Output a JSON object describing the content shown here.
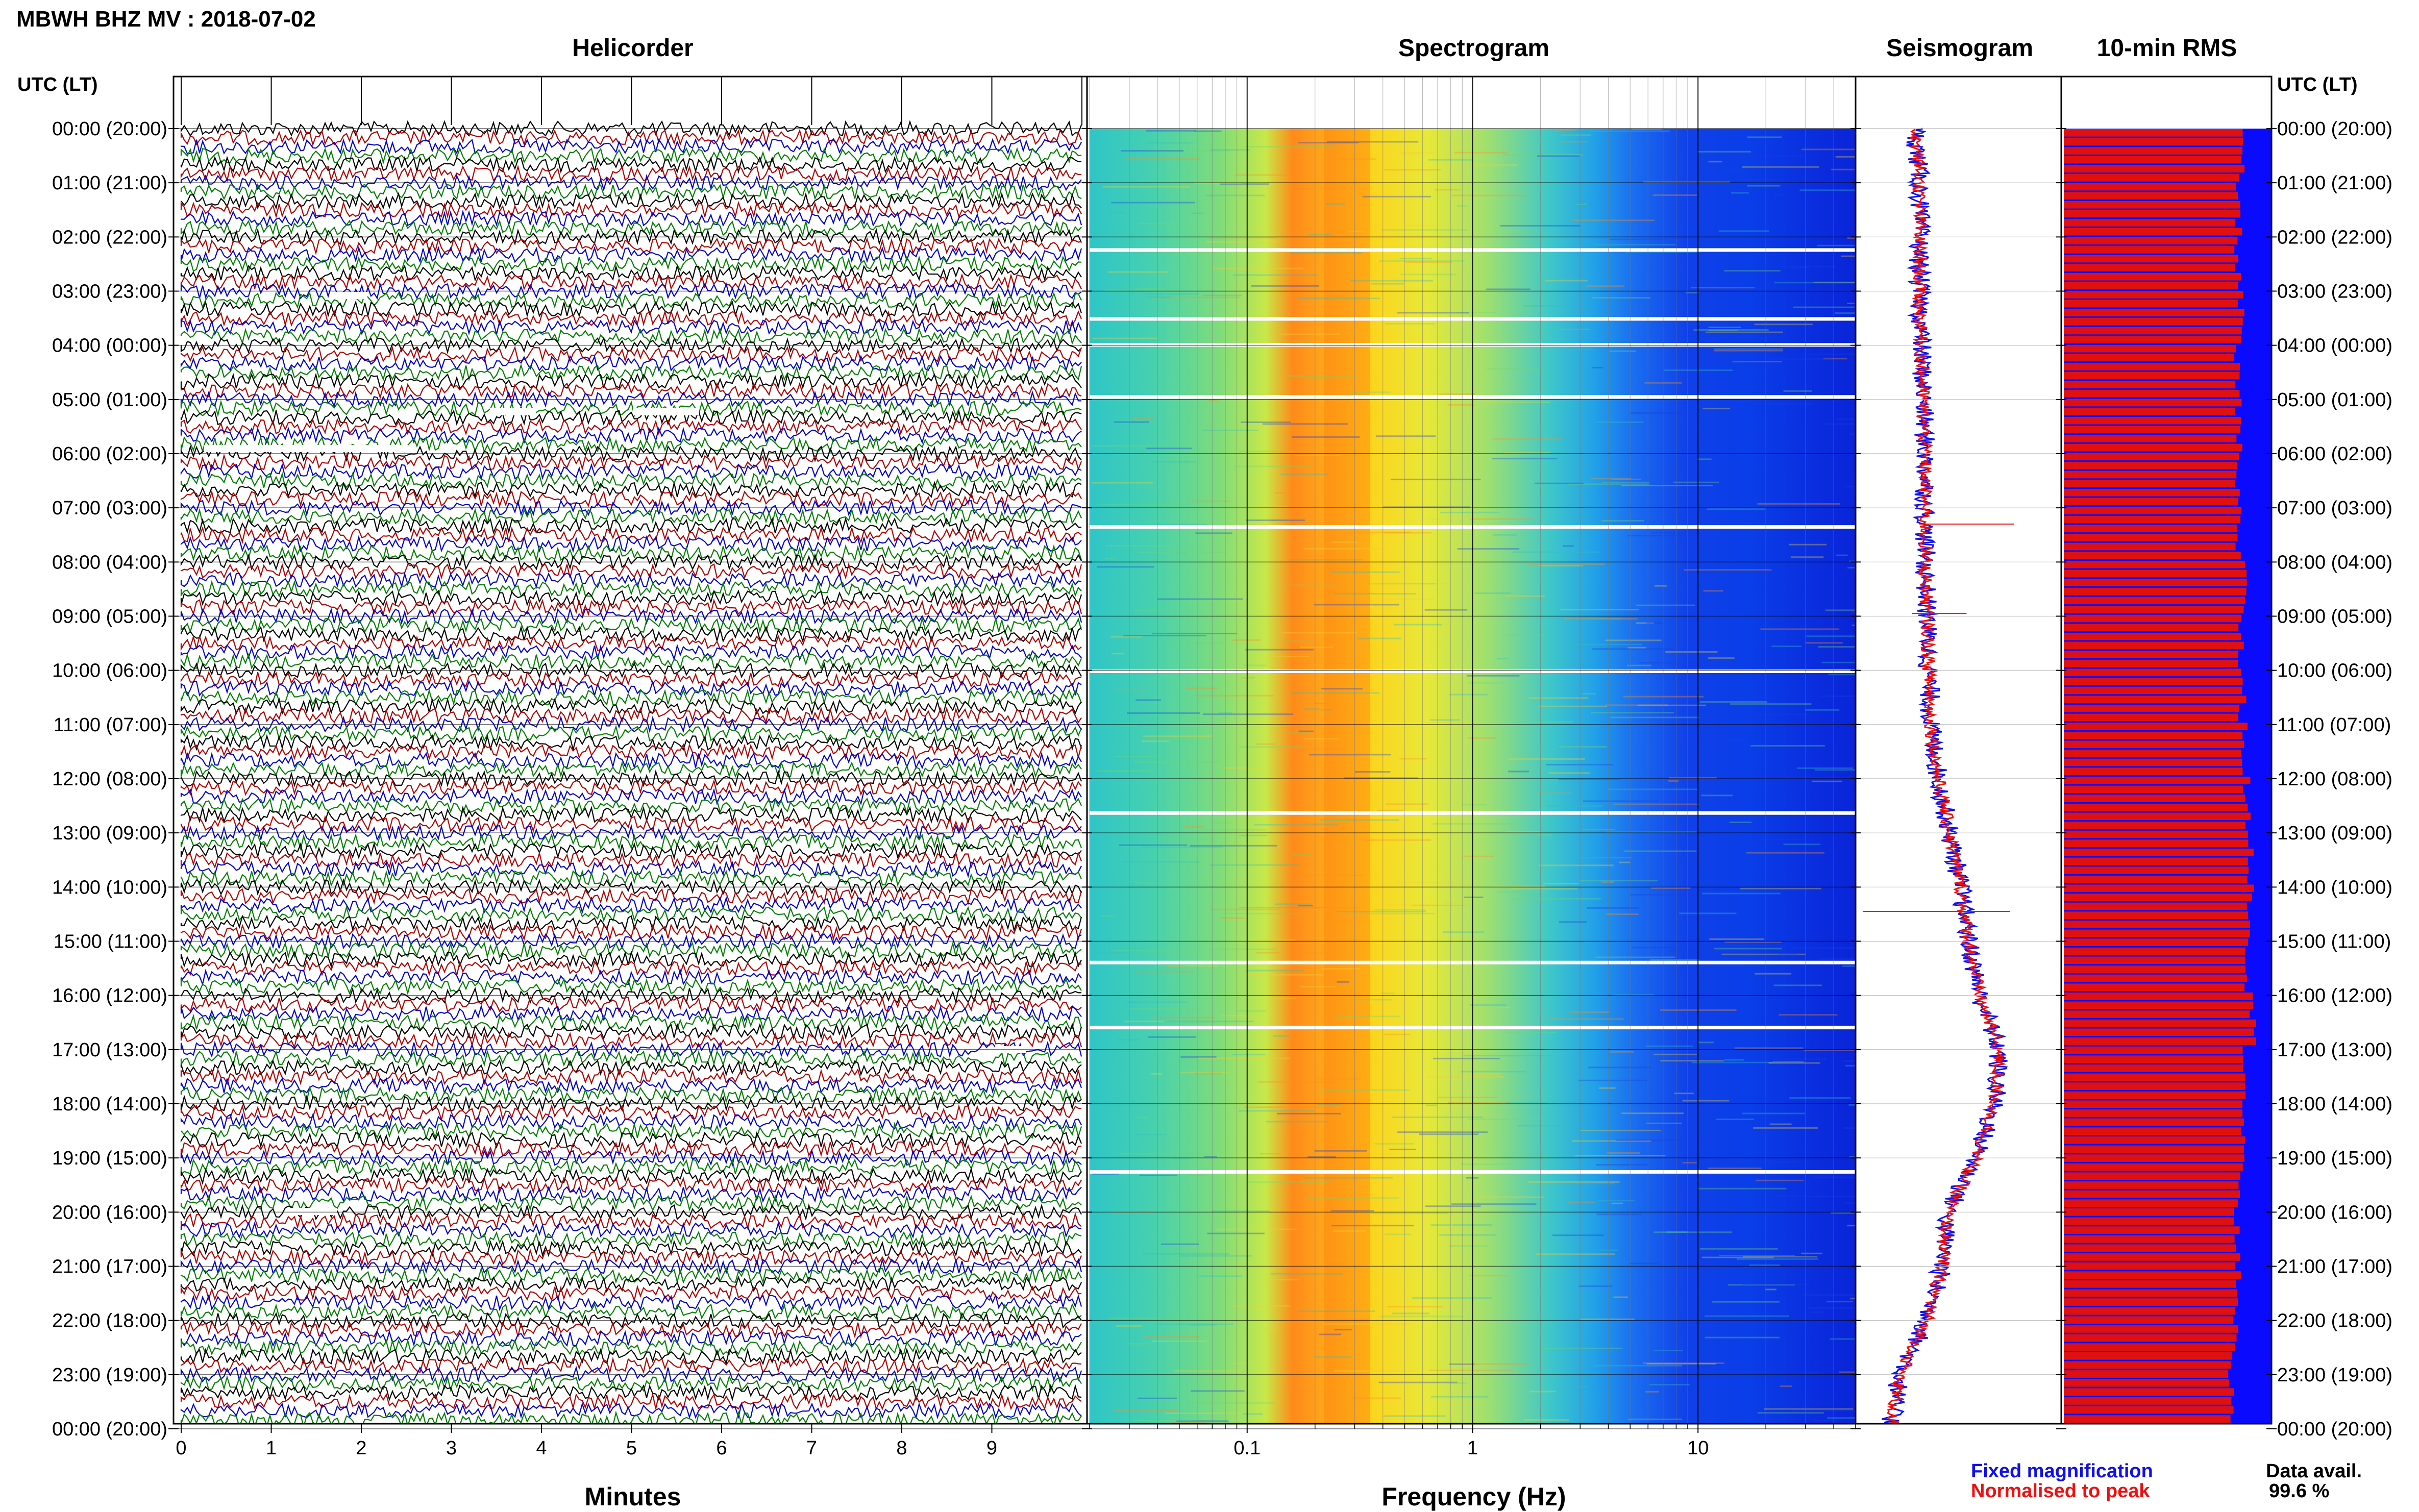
{
  "header": {
    "title": "MBWH BHZ MV : 2018-07-02",
    "time_axis_label": "UTC (LT)"
  },
  "panels": {
    "helicorder": "Helicorder",
    "spectrogram": "Spectrogram",
    "seismogram": "Seismogram",
    "rms": "10-min RMS"
  },
  "axes": {
    "helicorder_xlabel": "Minutes",
    "spectrogram_xlabel": "Frequency (Hz)"
  },
  "legend": {
    "fixed": "Fixed magnification",
    "normalised": "Normalised to peak",
    "fixed_color": "#1010ee",
    "normalised_color": "#ee1010"
  },
  "data_availability": {
    "label": "Data avail.",
    "value": "99.6 %"
  },
  "colors": {
    "trace_cycle": [
      "#000000",
      "#b00000",
      "#0000cc",
      "#008000"
    ],
    "rms_bar": "#e01010",
    "rms_background": "#0a0aff"
  },
  "chart_data": [
    {
      "type": "line",
      "title": "Helicorder",
      "xlabel": "Minutes",
      "x_ticks": [
        "0",
        "1",
        "2",
        "3",
        "4",
        "5",
        "6",
        "7",
        "8",
        "9"
      ],
      "xlim": [
        0,
        10
      ],
      "y_ticks": [
        "00:00 (20:00)",
        "01:00 (21:00)",
        "02:00 (22:00)",
        "03:00 (23:00)",
        "04:00 (00:00)",
        "05:00 (01:00)",
        "06:00 (02:00)",
        "07:00 (03:00)",
        "08:00 (04:00)",
        "09:00 (05:00)",
        "10:00 (06:00)",
        "11:00 (07:00)",
        "12:00 (08:00)",
        "13:00 (09:00)",
        "14:00 (10:00)",
        "15:00 (11:00)",
        "16:00 (12:00)",
        "17:00 (13:00)",
        "18:00 (14:00)",
        "19:00 (15:00)",
        "20:00 (16:00)",
        "21:00 (17:00)",
        "22:00 (18:00)",
        "23:00 (19:00)",
        "00:00 (20:00)"
      ],
      "rows_per_hour": 6,
      "trace_count": 144
    },
    {
      "type": "heatmap",
      "title": "Spectrogram",
      "xlabel": "Frequency (Hz)",
      "x_scale": "log",
      "x_ticks": [
        "0.1",
        "1",
        "10"
      ],
      "xlim": [
        0.02,
        50
      ],
      "peak_band_hz": [
        0.22,
        0.35
      ],
      "colormap": "jet"
    },
    {
      "type": "line",
      "title": "Seismogram",
      "series": [
        {
          "name": "Fixed magnification",
          "hours": [
            0,
            1,
            2,
            3,
            4,
            5,
            6,
            7,
            8,
            9,
            10,
            11,
            12,
            13,
            14,
            15,
            16,
            17,
            18,
            19,
            20,
            21,
            22,
            23,
            24
          ],
          "offset": [
            0.28,
            0.3,
            0.3,
            0.3,
            0.31,
            0.32,
            0.33,
            0.33,
            0.33,
            0.34,
            0.35,
            0.36,
            0.4,
            0.46,
            0.52,
            0.56,
            0.62,
            0.72,
            0.7,
            0.6,
            0.45,
            0.42,
            0.34,
            0.2,
            0.14
          ]
        },
        {
          "name": "Normalised to peak",
          "hours": [
            0,
            1,
            2,
            3,
            4,
            5,
            6,
            7,
            8,
            9,
            10,
            11,
            12,
            13,
            14,
            15,
            16,
            17,
            18,
            19,
            20,
            21,
            22,
            23,
            24
          ],
          "offset": [
            0.28,
            0.3,
            0.3,
            0.3,
            0.31,
            0.32,
            0.33,
            0.33,
            0.33,
            0.34,
            0.35,
            0.36,
            0.4,
            0.46,
            0.52,
            0.56,
            0.62,
            0.72,
            0.7,
            0.6,
            0.45,
            0.42,
            0.34,
            0.2,
            0.14
          ]
        }
      ]
    },
    {
      "type": "bar",
      "title": "10-min RMS",
      "orientation": "horizontal",
      "bins": 144,
      "rms_by_hour": [
        0.85,
        0.84,
        0.84,
        0.85,
        0.83,
        0.84,
        0.83,
        0.84,
        0.88,
        0.85,
        0.86,
        0.87,
        0.88,
        0.9,
        0.9,
        0.89,
        0.91,
        0.88,
        0.86,
        0.85,
        0.83,
        0.84,
        0.82,
        0.8
      ]
    }
  ]
}
